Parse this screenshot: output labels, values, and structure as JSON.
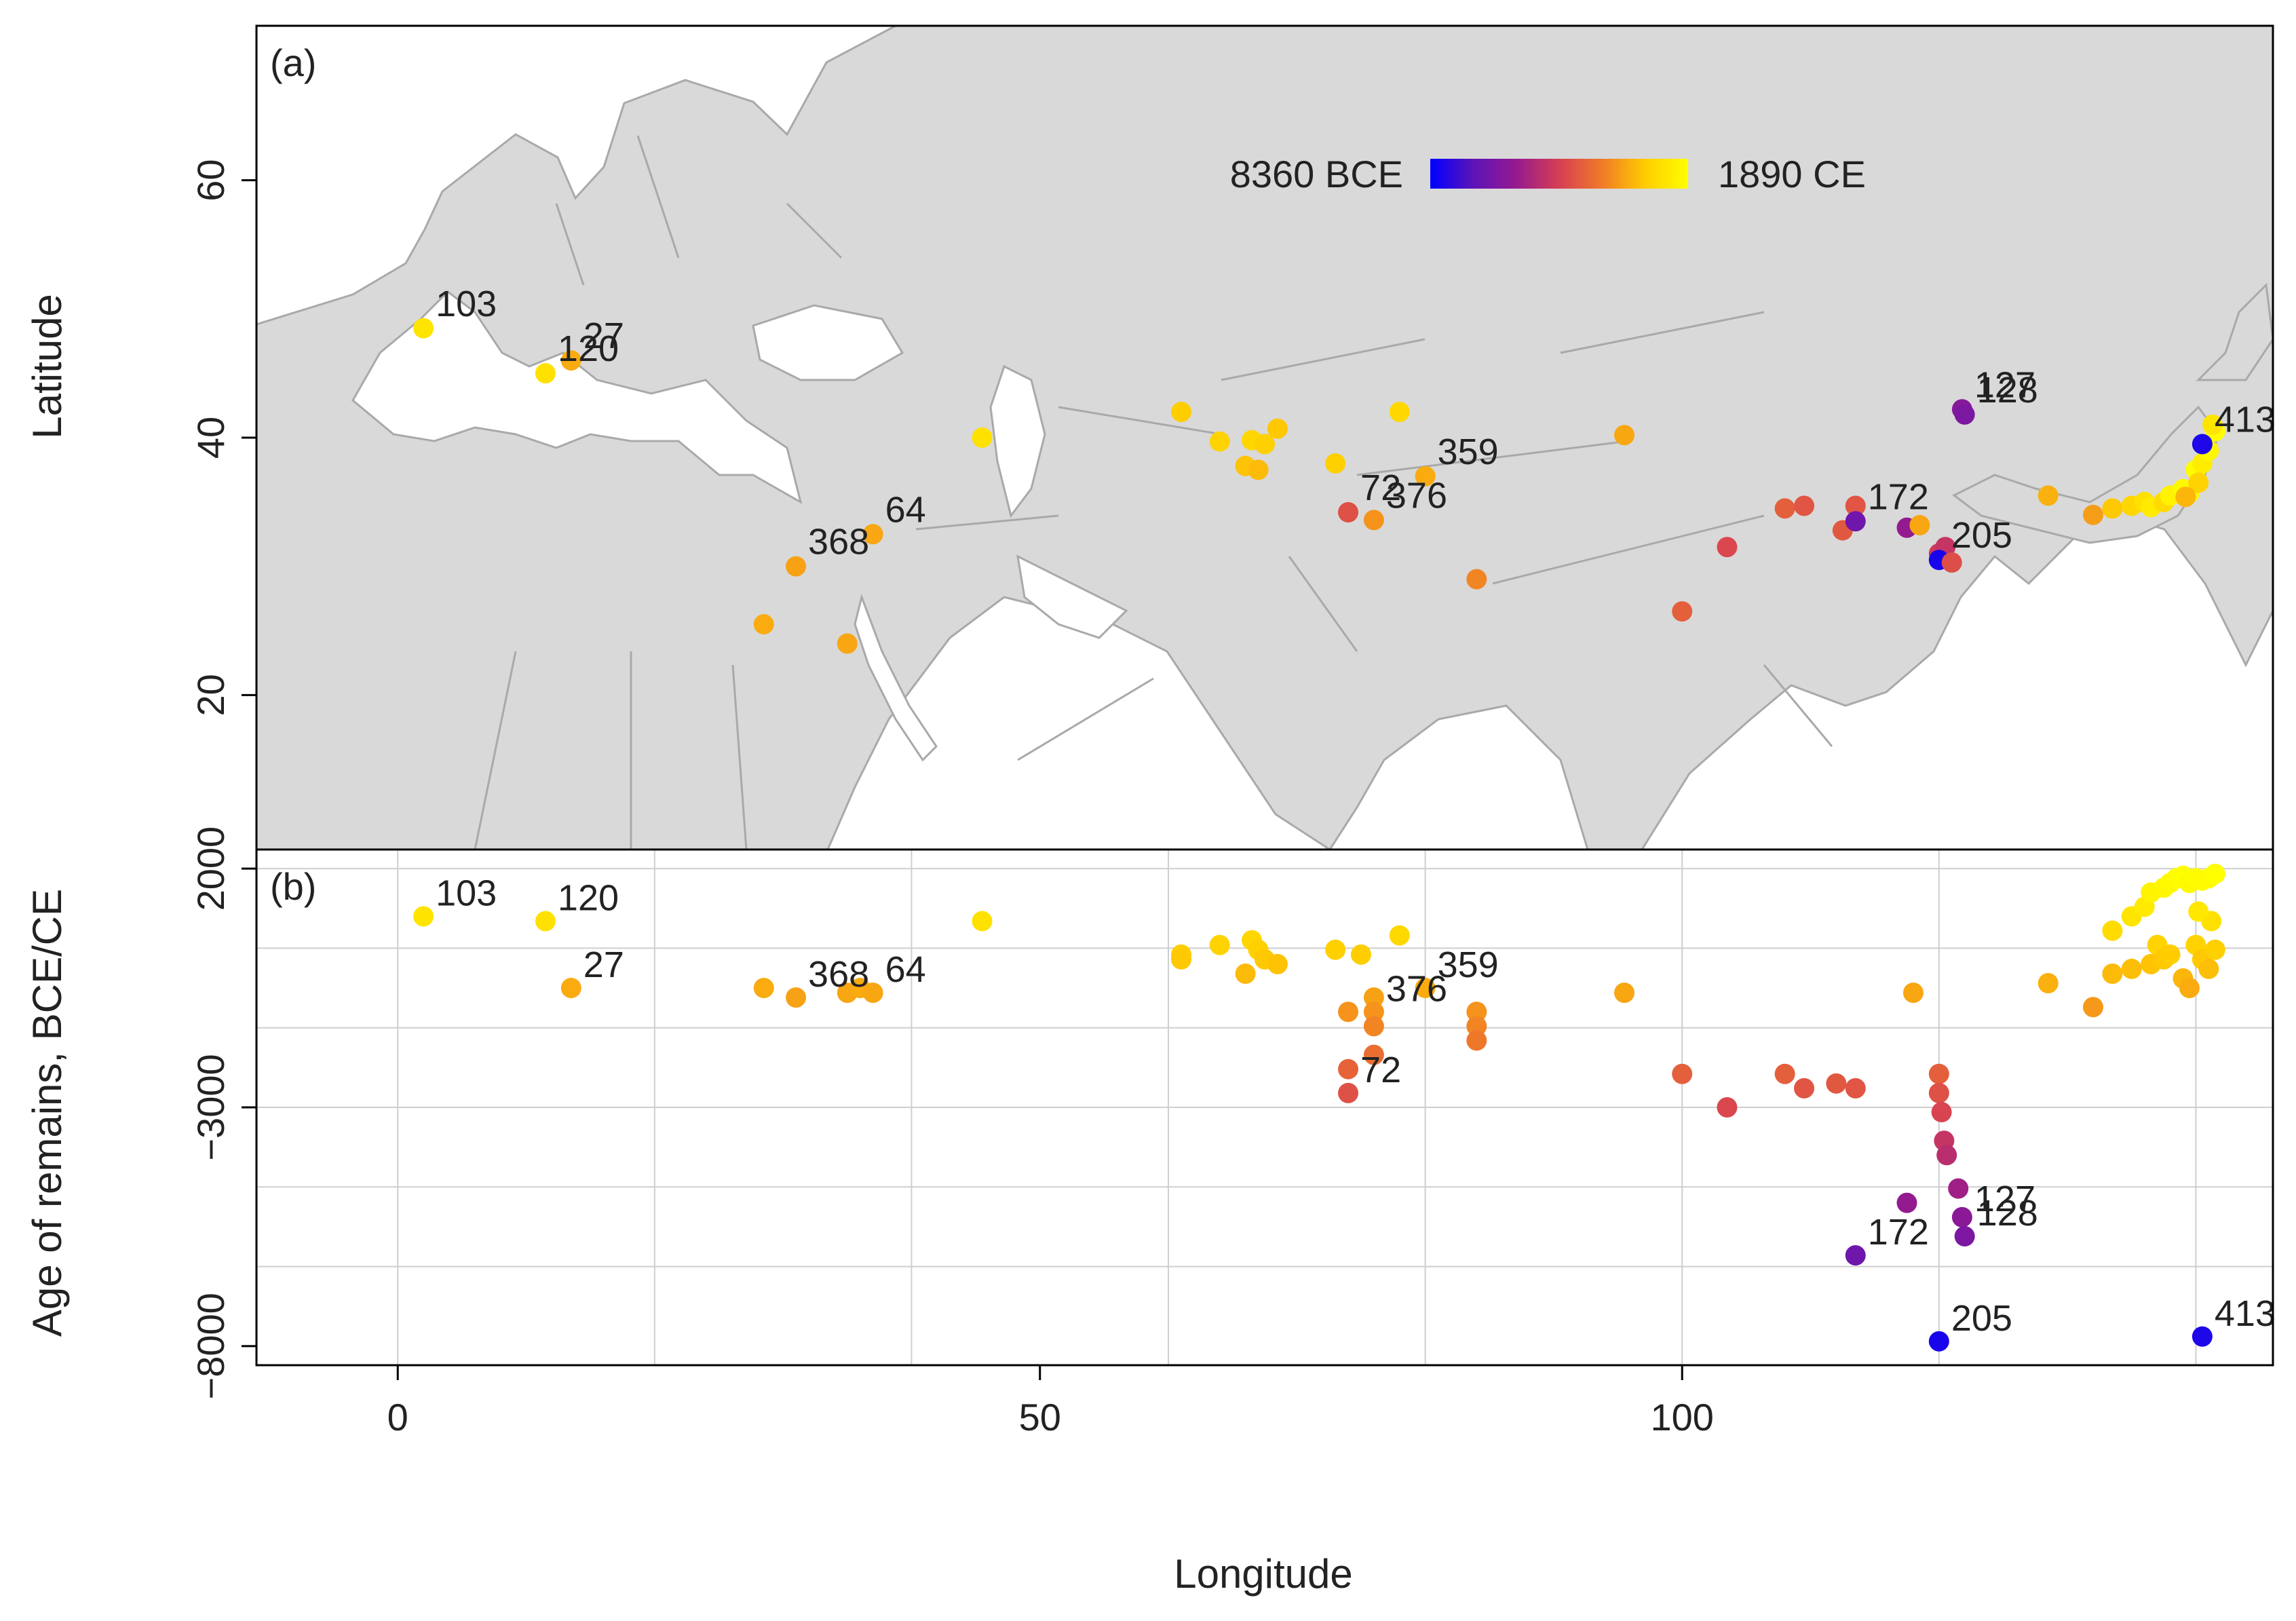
{
  "chart_data": [
    {
      "type": "scatter",
      "panel_label": "(a)",
      "ylabel": "Latitude",
      "xlim": [
        -11,
        146
      ],
      "ylim": [
        8,
        72
      ],
      "yticks": [
        20,
        40,
        60
      ],
      "colorbar": {
        "min_label": "8360 BCE",
        "max_label": "1890 CE",
        "min_value": -8360,
        "max_value": 1890,
        "colors": [
          "#0000ff",
          "#5c14b8",
          "#961a8f",
          "#d63f54",
          "#f07a28",
          "#ffcc00",
          "#ffff00"
        ]
      },
      "points": [
        {
          "lon": 2,
          "lat": 48.5,
          "age": 1000,
          "label": "103"
        },
        {
          "lon": 11.5,
          "lat": 45,
          "age": 900,
          "label": "120"
        },
        {
          "lon": 13.5,
          "lat": 46,
          "age": -500,
          "label": "27"
        },
        {
          "lon": 45.5,
          "lat": 40,
          "age": 900
        },
        {
          "lon": 61,
          "lat": 42,
          "age": 200
        },
        {
          "lon": 64,
          "lat": 39.7,
          "age": 400
        },
        {
          "lon": 66.5,
          "lat": 39.8,
          "age": 500
        },
        {
          "lon": 67.5,
          "lat": 39.5,
          "age": 300
        },
        {
          "lon": 68.5,
          "lat": 40.7,
          "age": 100
        },
        {
          "lon": 66,
          "lat": 37.8,
          "age": 0
        },
        {
          "lon": 67,
          "lat": 37.5,
          "age": -200
        },
        {
          "lon": 73,
          "lat": 38,
          "age": 300
        },
        {
          "lon": 78,
          "lat": 42,
          "age": 600
        },
        {
          "lon": 80,
          "lat": 37,
          "age": -500,
          "label": "359"
        },
        {
          "lon": 74,
          "lat": 34.2,
          "age": -2700,
          "label": "72"
        },
        {
          "lon": 76,
          "lat": 33.6,
          "age": -1000,
          "label": "376"
        },
        {
          "lon": 84,
          "lat": 29,
          "age": -1300
        },
        {
          "lon": 95.5,
          "lat": 40.2,
          "age": -600
        },
        {
          "lon": 100,
          "lat": 26.5,
          "age": -2300
        },
        {
          "lon": 103.5,
          "lat": 31.5,
          "age": -3000
        },
        {
          "lon": 108,
          "lat": 34.5,
          "age": -2300
        },
        {
          "lon": 109.5,
          "lat": 34.7,
          "age": -2600
        },
        {
          "lon": 112.5,
          "lat": 32.8,
          "age": -2500
        },
        {
          "lon": 113.5,
          "lat": 34.7,
          "age": -2600
        },
        {
          "lon": 113.5,
          "lat": 33.5,
          "age": -6100,
          "label": "172"
        },
        {
          "lon": 117.5,
          "lat": 33,
          "age": -5000
        },
        {
          "lon": 118.5,
          "lat": 33.2,
          "age": -600
        },
        {
          "lon": 120,
          "lat": 31,
          "age": -3500
        },
        {
          "lon": 120.5,
          "lat": 31.5,
          "age": -3700
        },
        {
          "lon": 120,
          "lat": 30.5,
          "age": -7900,
          "label": "205"
        },
        {
          "lon": 121,
          "lat": 30.3,
          "age": -2800
        },
        {
          "lon": 121.8,
          "lat": 42.2,
          "age": -5400,
          "label": "127"
        },
        {
          "lon": 122,
          "lat": 41.8,
          "age": -5700,
          "label": "128"
        },
        {
          "lon": 128.5,
          "lat": 35.5,
          "age": -400
        },
        {
          "lon": 132,
          "lat": 34,
          "age": -800
        },
        {
          "lon": 133.5,
          "lat": 34.5,
          "age": 100
        },
        {
          "lon": 135,
          "lat": 34.7,
          "age": 500
        },
        {
          "lon": 136,
          "lat": 35,
          "age": 900
        },
        {
          "lon": 136.5,
          "lat": 34.6,
          "age": 1200
        },
        {
          "lon": 137.5,
          "lat": 35,
          "age": 700
        },
        {
          "lon": 138,
          "lat": 35.5,
          "age": 1500
        },
        {
          "lon": 139,
          "lat": 36,
          "age": 1700
        },
        {
          "lon": 139.5,
          "lat": 35.7,
          "age": 1600
        },
        {
          "lon": 140,
          "lat": 37.5,
          "age": 1800
        },
        {
          "lon": 140.5,
          "lat": 38,
          "age": 1300
        },
        {
          "lon": 141,
          "lat": 39,
          "age": 1600
        },
        {
          "lon": 141.5,
          "lat": 40.5,
          "age": 1800
        },
        {
          "lon": 140.2,
          "lat": 36.5,
          "age": 400
        },
        {
          "lon": 139.2,
          "lat": 35.4,
          "age": -300
        },
        {
          "lon": 140.5,
          "lat": 39.5,
          "age": -7800,
          "label": "413"
        },
        {
          "lon": 141.3,
          "lat": 41,
          "age": 1000
        },
        {
          "lon": 37,
          "lat": 32.5,
          "age": -600,
          "label": "64"
        },
        {
          "lon": 31,
          "lat": 30,
          "age": -700,
          "label": "368"
        },
        {
          "lon": 28.5,
          "lat": 25.5,
          "age": -500
        },
        {
          "lon": 35,
          "lat": 24,
          "age": -600
        }
      ]
    },
    {
      "type": "scatter",
      "panel_label": "(b)",
      "xlabel": "Longitude",
      "ylabel": "Age of remains, BCE/CE",
      "xlim": [
        -11,
        146
      ],
      "ylim": [
        -8400,
        2400
      ],
      "xticks": [
        0,
        50,
        100
      ],
      "yticks": [
        2000,
        -3000,
        -8000
      ],
      "ytick_labels": [
        "2000",
        "−3000",
        "−8000"
      ],
      "grid": true,
      "annotations": [
        {
          "label": "103",
          "lon": 2,
          "age": 1000
        },
        {
          "label": "120",
          "lon": 11.5,
          "age": 900
        },
        {
          "label": "27",
          "lon": 13.5,
          "age": -500
        },
        {
          "label": "368",
          "lon": 31,
          "age": -700
        },
        {
          "label": "64",
          "lon": 37,
          "age": -600
        },
        {
          "label": "359",
          "lon": 80,
          "age": -500
        },
        {
          "label": "376",
          "lon": 76,
          "age": -1000
        },
        {
          "label": "72",
          "lon": 74,
          "age": -2700
        },
        {
          "label": "172",
          "lon": 113.5,
          "age": -6100
        },
        {
          "label": "127",
          "lon": 121.8,
          "age": -5400
        },
        {
          "label": "128",
          "lon": 122,
          "age": -5700
        },
        {
          "label": "205",
          "lon": 120,
          "age": -7900
        },
        {
          "label": "413",
          "lon": 140.5,
          "age": -7800
        }
      ],
      "points": [
        [
          2,
          1000
        ],
        [
          11.5,
          900
        ],
        [
          13.5,
          -500
        ],
        [
          28.5,
          -500
        ],
        [
          31,
          -700
        ],
        [
          35,
          -600
        ],
        [
          36,
          -500
        ],
        [
          37,
          -600
        ],
        [
          45.5,
          900
        ],
        [
          61,
          200
        ],
        [
          61,
          100
        ],
        [
          64,
          400
        ],
        [
          66,
          -200
        ],
        [
          66.5,
          500
        ],
        [
          67,
          300
        ],
        [
          67.5,
          100
        ],
        [
          68.5,
          0
        ],
        [
          73,
          300
        ],
        [
          74,
          -1000
        ],
        [
          74,
          -2200
        ],
        [
          74,
          -2700
        ],
        [
          75,
          200
        ],
        [
          76,
          -700
        ],
        [
          76,
          -1000
        ],
        [
          76,
          -1300
        ],
        [
          76,
          -1900
        ],
        [
          78,
          600
        ],
        [
          80,
          -500
        ],
        [
          84,
          -1000
        ],
        [
          84,
          -1300
        ],
        [
          84,
          -1600
        ],
        [
          95.5,
          -600
        ],
        [
          100,
          -2300
        ],
        [
          103.5,
          -3000
        ],
        [
          108,
          -2300
        ],
        [
          109.5,
          -2600
        ],
        [
          112,
          -2500
        ],
        [
          113.5,
          -2600
        ],
        [
          113.5,
          -6100
        ],
        [
          117.5,
          -5000
        ],
        [
          118,
          -600
        ],
        [
          120,
          -2300
        ],
        [
          120,
          -2700
        ],
        [
          120.2,
          -3100
        ],
        [
          120.4,
          -3700
        ],
        [
          120.6,
          -4000
        ],
        [
          121.5,
          -4700
        ],
        [
          121.8,
          -5300
        ],
        [
          122,
          -5700
        ],
        [
          120,
          -7900
        ],
        [
          128.5,
          -400
        ],
        [
          132,
          -900
        ],
        [
          133.5,
          -200
        ],
        [
          133.5,
          700
        ],
        [
          135,
          1000
        ],
        [
          136,
          1200
        ],
        [
          136.5,
          1500
        ],
        [
          137.5,
          1600
        ],
        [
          138,
          1700
        ],
        [
          138.5,
          1800
        ],
        [
          139,
          1850
        ],
        [
          139.5,
          1700
        ],
        [
          140,
          1800
        ],
        [
          140.5,
          1750
        ],
        [
          141,
          1800
        ],
        [
          141.5,
          1890
        ],
        [
          135,
          -100
        ],
        [
          136.5,
          0
        ],
        [
          137,
          400
        ],
        [
          137.5,
          100
        ],
        [
          138,
          200
        ],
        [
          139,
          -300
        ],
        [
          139.5,
          -500
        ],
        [
          140,
          400
        ],
        [
          140.5,
          100
        ],
        [
          141,
          -100
        ],
        [
          141.5,
          300
        ],
        [
          141.2,
          900
        ],
        [
          140.2,
          1100
        ],
        [
          140.5,
          -7800
        ]
      ]
    }
  ]
}
